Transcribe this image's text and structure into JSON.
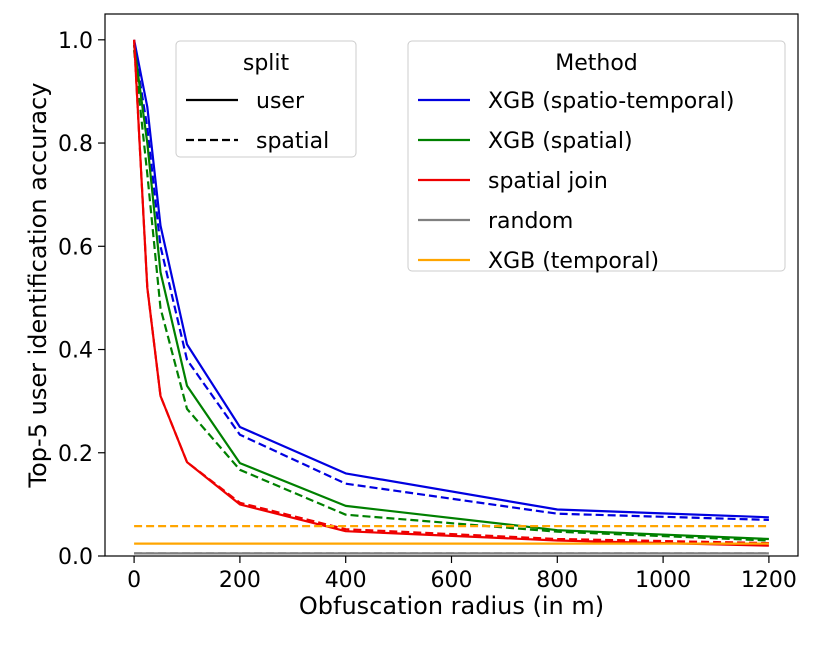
{
  "chart_data": {
    "type": "line",
    "title": "",
    "xlabel": "Obfuscation radius (in m)",
    "ylabel": "Top-5 user identification accuracy",
    "xlim": [
      -55,
      1255
    ],
    "ylim": [
      0,
      1.05
    ],
    "xticks": [
      0,
      200,
      400,
      600,
      800,
      1000,
      1200
    ],
    "yticks": [
      0.0,
      0.2,
      0.4,
      0.6,
      0.8,
      1.0
    ],
    "xtick_labels": [
      "0",
      "200",
      "400",
      "600",
      "800",
      "1000",
      "1200"
    ],
    "ytick_labels": [
      "0.0",
      "0.2",
      "0.4",
      "0.6",
      "0.8",
      "1.0"
    ],
    "grid": false,
    "x": [
      0,
      25,
      50,
      100,
      200,
      400,
      800,
      1200
    ],
    "series": [
      {
        "method": "XGB (spatio-temporal)",
        "split": "user",
        "color": "#0000e0",
        "dash": "solid",
        "values": [
          1.0,
          0.87,
          0.64,
          0.41,
          0.25,
          0.16,
          0.09,
          0.075
        ]
      },
      {
        "method": "XGB (spatio-temporal)",
        "split": "spatial",
        "color": "#0000e0",
        "dash": "dashed",
        "values": [
          0.99,
          0.83,
          0.6,
          0.38,
          0.235,
          0.14,
          0.082,
          0.07
        ]
      },
      {
        "method": "XGB (spatial)",
        "split": "user",
        "color": "#008000",
        "dash": "solid",
        "values": [
          0.99,
          0.8,
          0.55,
          0.33,
          0.18,
          0.097,
          0.05,
          0.033
        ]
      },
      {
        "method": "XGB (spatial)",
        "split": "spatial",
        "color": "#008000",
        "dash": "dashed",
        "values": [
          0.98,
          0.74,
          0.48,
          0.285,
          0.167,
          0.08,
          0.047,
          0.03
        ]
      },
      {
        "method": "spatial join",
        "split": "user",
        "color": "#ee0000",
        "dash": "solid",
        "values": [
          1.0,
          0.52,
          0.31,
          0.182,
          0.1,
          0.048,
          0.03,
          0.02
        ]
      },
      {
        "method": "spatial join",
        "split": "spatial",
        "color": "#ee0000",
        "dash": "dashed",
        "values": [
          1.0,
          0.52,
          0.31,
          0.182,
          0.103,
          0.052,
          0.033,
          0.025
        ]
      },
      {
        "method": "random",
        "split": "user",
        "color": "#808080",
        "dash": "solid",
        "values": [
          0.005,
          0.005,
          0.005,
          0.005,
          0.005,
          0.005,
          0.005,
          0.005
        ]
      },
      {
        "method": "random",
        "split": "spatial",
        "color": "#808080",
        "dash": "dashed",
        "values": [
          0.005,
          0.005,
          0.005,
          0.005,
          0.005,
          0.005,
          0.005,
          0.005
        ]
      },
      {
        "method": "XGB (temporal)",
        "split": "user",
        "color": "#ffa500",
        "dash": "solid",
        "values": [
          0.024,
          0.024,
          0.024,
          0.024,
          0.024,
          0.024,
          0.024,
          0.024
        ]
      },
      {
        "method": "XGB (temporal)",
        "split": "spatial",
        "color": "#ffa500",
        "dash": "dashed",
        "values": [
          0.058,
          0.058,
          0.058,
          0.058,
          0.058,
          0.058,
          0.058,
          0.058
        ]
      }
    ],
    "legends": [
      {
        "title": "split",
        "placement": "top-center",
        "entries": [
          {
            "label": "user",
            "color": "#000000",
            "dash": "solid"
          },
          {
            "label": "spatial",
            "color": "#000000",
            "dash": "dashed"
          }
        ]
      },
      {
        "title": "Method",
        "placement": "top-right",
        "entries": [
          {
            "label": "XGB (spatio-temporal)",
            "color": "#0000e0",
            "dash": "solid"
          },
          {
            "label": "XGB (spatial)",
            "color": "#008000",
            "dash": "solid"
          },
          {
            "label": "spatial join",
            "color": "#ee0000",
            "dash": "solid"
          },
          {
            "label": "random",
            "color": "#808080",
            "dash": "solid"
          },
          {
            "label": "XGB (temporal)",
            "color": "#ffa500",
            "dash": "solid"
          }
        ]
      }
    ]
  }
}
